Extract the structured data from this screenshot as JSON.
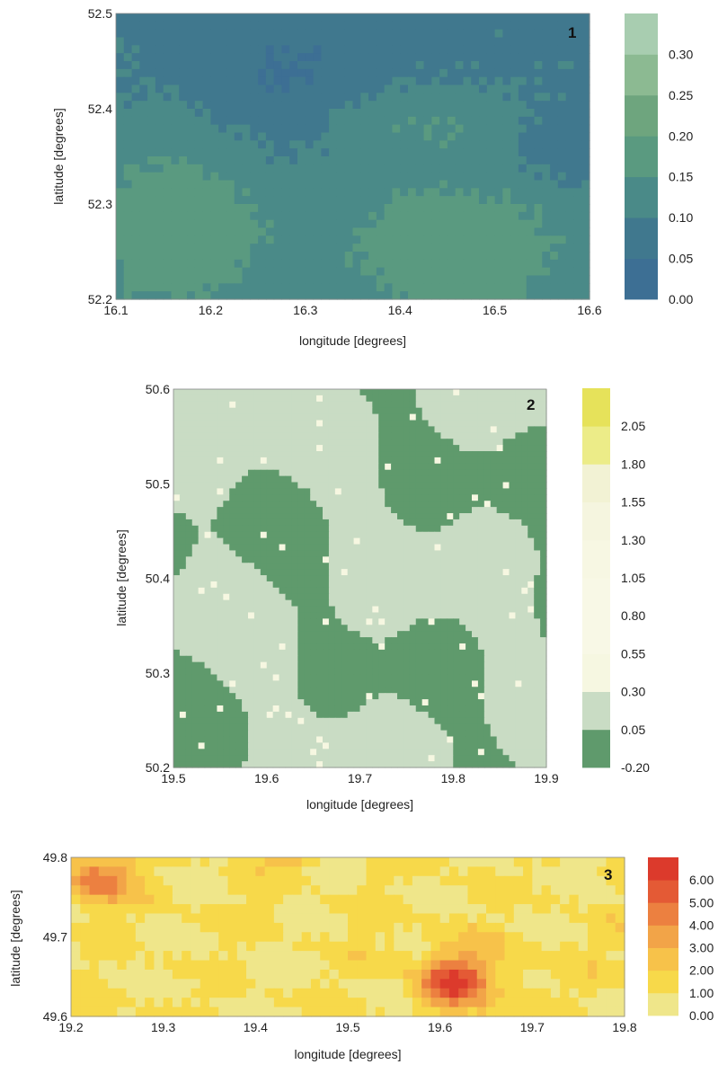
{
  "chart_data": [
    {
      "type": "heatmap",
      "panel_label": "1",
      "xlabel": "longitude [degrees]",
      "ylabel": "latitude [degrees]",
      "xlim": [
        16.1,
        16.6
      ],
      "ylim": [
        52.2,
        52.5
      ],
      "x_ticks": [
        "16.1",
        "16.2",
        "16.3",
        "16.4",
        "16.5",
        "16.6"
      ],
      "y_ticks": [
        "52.2",
        "52.3",
        "52.4",
        "52.5"
      ],
      "colorbar": {
        "ticks": [
          "0.00",
          "0.05",
          "0.10",
          "0.15",
          "0.20",
          "0.25",
          "0.30"
        ],
        "levels": [
          0.0,
          0.05,
          0.1,
          0.15,
          0.2,
          0.25,
          0.3,
          0.35
        ],
        "colors": [
          "#3d6f94",
          "#40788e",
          "#4a8a88",
          "#5a9a80",
          "#6ea57e",
          "#8cba92",
          "#a8cdb0"
        ]
      }
    },
    {
      "type": "heatmap",
      "panel_label": "2",
      "xlabel": "longitude [degrees]",
      "ylabel": "latitude [degrees]",
      "xlim": [
        19.5,
        19.9
      ],
      "ylim": [
        50.2,
        50.6
      ],
      "x_ticks": [
        "19.5",
        "19.6",
        "19.7",
        "19.8",
        "19.9"
      ],
      "y_ticks": [
        "50.2",
        "50.3",
        "50.4",
        "50.5",
        "50.6"
      ],
      "colorbar": {
        "ticks": [
          "-0.20",
          "0.05",
          "0.30",
          "0.55",
          "0.80",
          "1.05",
          "1.30",
          "1.55",
          "1.80",
          "2.05"
        ],
        "levels": [
          -0.2,
          0.05,
          0.3,
          0.55,
          0.8,
          1.05,
          1.3,
          1.55,
          1.8,
          2.05,
          2.3
        ],
        "colors": [
          "#5f9a6c",
          "#c9dcc4",
          "#f6f7e1",
          "#f8f8e6",
          "#f8f8e6",
          "#f7f7e3",
          "#f5f5df",
          "#f2f2d4",
          "#ecec88",
          "#e6e25a"
        ]
      }
    },
    {
      "type": "heatmap",
      "panel_label": "3",
      "xlabel": "longitude [degrees]",
      "ylabel": "latitude [degrees]",
      "xlim": [
        19.2,
        19.8
      ],
      "ylim": [
        49.6,
        49.8
      ],
      "x_ticks": [
        "19.2",
        "19.3",
        "19.4",
        "19.5",
        "19.6",
        "19.7",
        "19.8"
      ],
      "y_ticks": [
        "49.6",
        "49.7",
        "49.8"
      ],
      "colorbar": {
        "ticks": [
          "0.00",
          "1.00",
          "2.00",
          "3.00",
          "4.00",
          "5.00",
          "6.00"
        ],
        "levels": [
          0.0,
          1.0,
          2.0,
          3.0,
          4.0,
          5.0,
          6.0,
          7.0
        ],
        "colors": [
          "#efe68a",
          "#f7d94a",
          "#f7c24a",
          "#f2a448",
          "#ec8040",
          "#e45a35",
          "#dc3a2c"
        ]
      }
    }
  ]
}
